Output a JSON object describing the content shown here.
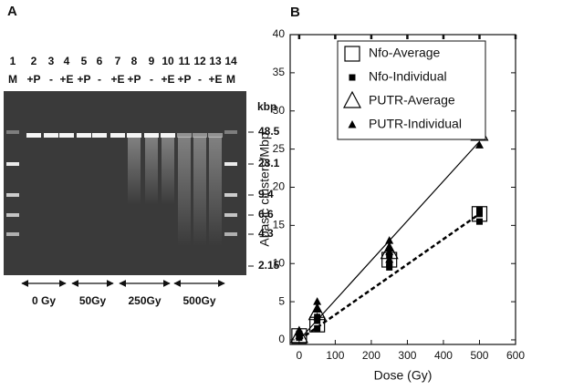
{
  "panel_a": {
    "label": "A",
    "lane_numbers": [
      "1",
      "2",
      "3",
      "4",
      "5",
      "6",
      "7",
      "8",
      "9",
      "10",
      "11",
      "12",
      "13",
      "14"
    ],
    "lane_labels": [
      "M",
      "+P",
      "-",
      "+E",
      "+P",
      "-",
      "+E",
      "+P",
      "-",
      "+E",
      "+P",
      "-",
      "+E",
      "M"
    ],
    "size_unit": "kbp",
    "sizes": [
      "48.5",
      "23.1",
      "9.4",
      "6.6",
      "4.3",
      "2.15"
    ],
    "doses": [
      "0 Gy",
      "50Gy",
      "250Gy",
      "500Gy"
    ]
  },
  "panel_b": {
    "label": "B"
  },
  "chart_data": {
    "type": "scatter",
    "x_label": "Dose (Gy)",
    "y_label": "Abasic clusters/Mbp",
    "xlim": [
      -25,
      600
    ],
    "ylim": [
      -0.6,
      40
    ],
    "xticks": [
      0,
      100,
      200,
      300,
      400,
      500,
      600
    ],
    "yticks": [
      0,
      5,
      10,
      15,
      20,
      25,
      30,
      35,
      40
    ],
    "legend": "upper left",
    "series": [
      {
        "name": "Nfo-Average",
        "color": "#000000",
        "marker": "square-open",
        "x": [
          0,
          50,
          250,
          500
        ],
        "values": [
          0.5,
          2,
          10.5,
          16.5
        ]
      },
      {
        "name": "Nfo-Individual",
        "color": "#000000",
        "marker": "square",
        "x": [
          0,
          0,
          50,
          50,
          50,
          250,
          250,
          250,
          500,
          500,
          500
        ],
        "values": [
          0.3,
          0.8,
          1.5,
          2.5,
          3,
          9.5,
          10,
          11,
          15.5,
          16.5,
          17
        ]
      },
      {
        "name": "PUTR-Average",
        "color": "#000000",
        "marker": "triangle-open",
        "x": [
          0,
          50,
          250,
          500
        ],
        "values": [
          0.5,
          3.5,
          11.5,
          27
        ]
      },
      {
        "name": "PUTR-Individual",
        "color": "#000000",
        "marker": "triangle",
        "x": [
          0,
          0,
          50,
          50,
          50,
          250,
          250,
          250,
          250,
          500,
          500,
          500
        ],
        "values": [
          0.5,
          1,
          3,
          4,
          5,
          10.5,
          11.5,
          12,
          13,
          25.5,
          27.5,
          28
        ]
      }
    ],
    "lines": [
      {
        "x": [
          0,
          500
        ],
        "values": [
          0,
          16.5
        ],
        "dashed": true,
        "color": "#000000"
      },
      {
        "x": [
          0,
          500
        ],
        "values": [
          0,
          26
        ],
        "dashed": false,
        "color": "#000000"
      }
    ]
  }
}
